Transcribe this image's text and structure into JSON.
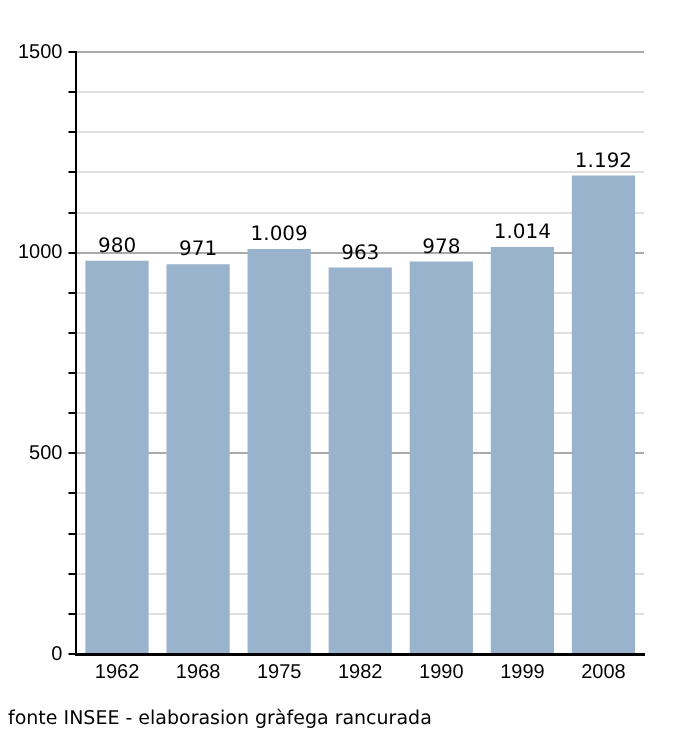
{
  "chart_data": {
    "type": "bar",
    "categories": [
      "1962",
      "1968",
      "1975",
      "1982",
      "1990",
      "1999",
      "2008"
    ],
    "values": [
      980,
      971,
      1009,
      963,
      978,
      1014,
      1192
    ],
    "value_labels": [
      "980",
      "971",
      "1.009",
      "963",
      "978",
      "1.014",
      "1.192"
    ],
    "color": "#9ab3cd",
    "ylim": [
      0,
      1500
    ],
    "yticks": [
      0,
      {
        "value": 100,
        "label": null
      },
      {
        "value": 200,
        "label": null
      },
      {
        "value": 300,
        "label": null
      },
      {
        "value": 400,
        "label": null
      },
      500,
      {
        "value": 600,
        "label": null
      },
      {
        "value": 700,
        "label": null
      },
      {
        "value": 800,
        "label": null
      },
      {
        "value": 900,
        "label": null
      },
      1000,
      {
        "value": 1100,
        "label": null
      },
      {
        "value": 1200,
        "label": null
      },
      {
        "value": 1300,
        "label": null
      },
      {
        "value": 1400,
        "label": null
      },
      1500
    ],
    "grid": true,
    "annotations": [
      "fonte INSEE - elaborasion gràfega rancurada"
    ]
  }
}
